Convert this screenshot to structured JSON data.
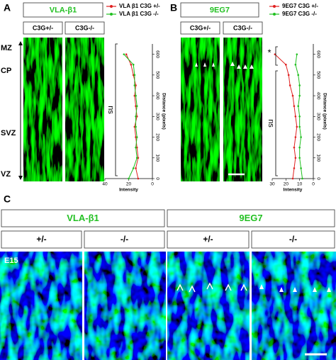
{
  "panels": [
    {
      "label": "A",
      "header": "VLA-β1",
      "columns": [
        "C3G+/-",
        "C3G-/-"
      ]
    },
    {
      "label": "B",
      "header": "9EG7",
      "columns": [
        "C3G+/-",
        "C3G-/-"
      ]
    }
  ],
  "zones": [
    "MZ",
    "CP",
    "SVZ",
    "VZ"
  ],
  "panel_c": {
    "label": "C",
    "headers": [
      {
        "title": "VLA-β1",
        "columns": [
          "+/-",
          "-/-"
        ]
      },
      {
        "title": "9EG7",
        "columns": [
          "+/-",
          "-/-"
        ]
      }
    ],
    "stage": "E15"
  },
  "chart_data": [
    {
      "type": "line",
      "x_label": "Distance (pixels)",
      "y_label": "Intensity",
      "annotation": "ns",
      "x": [
        0,
        50,
        100,
        150,
        200,
        250,
        300,
        350,
        400,
        450,
        500,
        550,
        600
      ],
      "xlim": [
        0,
        650
      ],
      "xticks": [
        0,
        100,
        200,
        300,
        400,
        500,
        600
      ],
      "ylim": [
        0,
        40
      ],
      "yticks": [
        0,
        20,
        40
      ],
      "y_reversed": true,
      "series": [
        {
          "name": "VLA β1 C3G +/-",
          "color": "#e02020",
          "values": [
            12,
            14,
            12,
            13,
            14,
            15,
            13,
            14,
            15,
            14,
            16,
            18,
            22
          ]
        },
        {
          "name": "VLA β1 C3G -/-",
          "color": "#20c020",
          "values": [
            20,
            16,
            13,
            14,
            13,
            14,
            14,
            13,
            14,
            15,
            15,
            16,
            24
          ]
        }
      ]
    },
    {
      "type": "line",
      "x_label": "Distance (pixels)",
      "y_label": "Intensity",
      "annotation": "ns",
      "significance": "*",
      "x": [
        0,
        50,
        100,
        150,
        200,
        250,
        300,
        350,
        400,
        450,
        500,
        550,
        600
      ],
      "xlim": [
        0,
        650
      ],
      "xticks": [
        0,
        100,
        200,
        300,
        400,
        500,
        600
      ],
      "ylim": [
        0,
        30
      ],
      "yticks": [
        0,
        10,
        20,
        30
      ],
      "y_reversed": true,
      "series": [
        {
          "name": "9EG7 C3G +/-",
          "color": "#e02020",
          "values": [
            15,
            14,
            13,
            14,
            13,
            12,
            13,
            14,
            15,
            17,
            18,
            20,
            28
          ]
        },
        {
          "name": "9EG7 C3G -/-",
          "color": "#20c020",
          "values": [
            8,
            9,
            10,
            10,
            9,
            10,
            10,
            11,
            10,
            10,
            11,
            13,
            12
          ]
        }
      ]
    }
  ]
}
